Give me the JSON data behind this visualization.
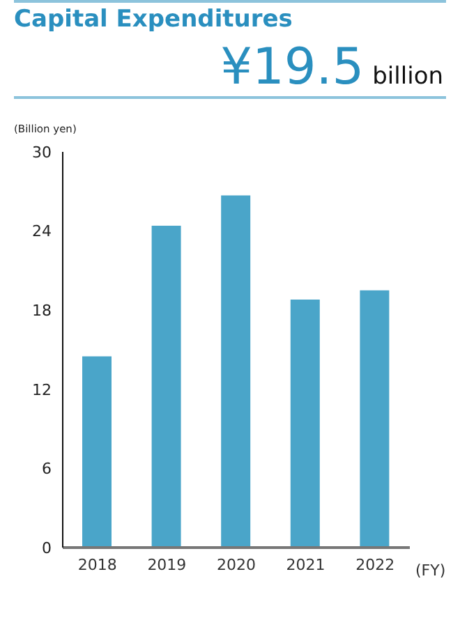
{
  "chart_data": {
    "type": "bar",
    "title": "Capital Expenditures",
    "subtitle": "¥19.5",
    "annotations": [
      "billion"
    ],
    "ylabel": "(Billion yen)",
    "xlabel": "(FY)",
    "categories": [
      "2018",
      "2019",
      "2020",
      "2021",
      "2022"
    ],
    "values": [
      14.5,
      24.4,
      26.7,
      18.8,
      19.5
    ],
    "color": "#4aa5c9",
    "ylim": [
      0,
      30
    ],
    "yticks": [
      0,
      6,
      12,
      18,
      24,
      30
    ],
    "grid": false,
    "legend": false
  }
}
